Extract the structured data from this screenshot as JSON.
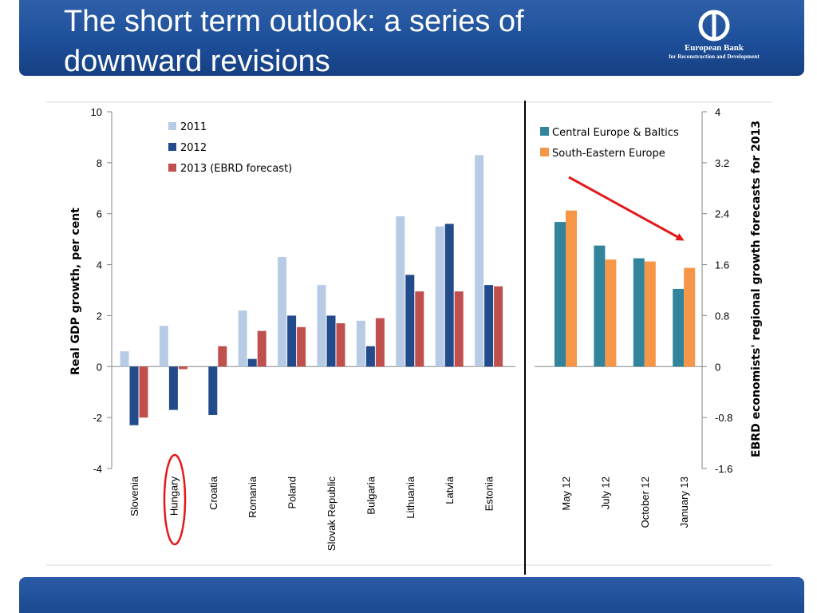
{
  "slide": {
    "title": "The short term outlook: a series of downward revisions",
    "logo_name": "European Bank",
    "logo_sub": "for Reconstruction and Development"
  },
  "colors": {
    "header_blue": "#1d4f9a",
    "c2011": "#b7cce4",
    "c2012": "#234a8a",
    "c2013": "#c0504d",
    "central_europe": "#31849b",
    "south_eastern": "#f79646",
    "arrow": "#e31a1c",
    "circle": "#e31a1c"
  },
  "chart_data": [
    {
      "type": "bar",
      "categories": [
        "Slovenia",
        "Hungary",
        "Croatia",
        "Romania",
        "Poland",
        "Slovak Republic",
        "Bulgaria",
        "Lithuania",
        "Latvia",
        "Estonia"
      ],
      "series": [
        {
          "name": "2011",
          "values": [
            0.6,
            1.6,
            0.0,
            2.2,
            4.3,
            3.2,
            1.8,
            5.9,
            5.5,
            8.3
          ]
        },
        {
          "name": "2012",
          "values": [
            -2.3,
            -1.7,
            -1.9,
            0.3,
            2.0,
            2.0,
            0.8,
            3.6,
            5.6,
            3.2
          ]
        },
        {
          "name": "2013 (EBRD forecast)",
          "values": [
            -2.0,
            -0.1,
            0.8,
            1.4,
            1.55,
            1.7,
            1.9,
            2.95,
            2.95,
            3.15
          ]
        }
      ],
      "ylabel": "Real GDP growth, per cent",
      "ylim": [
        -4,
        10
      ],
      "yticks": [
        "10",
        "8",
        "6",
        "4",
        "2",
        "0",
        "-2",
        "-4"
      ],
      "highlight": "Hungary"
    },
    {
      "type": "bar",
      "categories": [
        "May 12",
        "July 12",
        "October 12",
        "January 13"
      ],
      "series": [
        {
          "name": "Central Europe & Baltics",
          "values": [
            2.27,
            1.9,
            1.7,
            1.22
          ]
        },
        {
          "name": "South-Eastern Europe",
          "values": [
            2.45,
            1.68,
            1.65,
            1.55
          ]
        }
      ],
      "ylabel": "EBRD economists' regional growth forecasts for 2013",
      "ylim": [
        -1.6,
        4
      ],
      "yticks": [
        "4",
        "3.2",
        "2.4",
        "1.6",
        "0.8",
        "0",
        "-0.8",
        "-1.6"
      ],
      "annotation": "downward trend arrow"
    }
  ]
}
